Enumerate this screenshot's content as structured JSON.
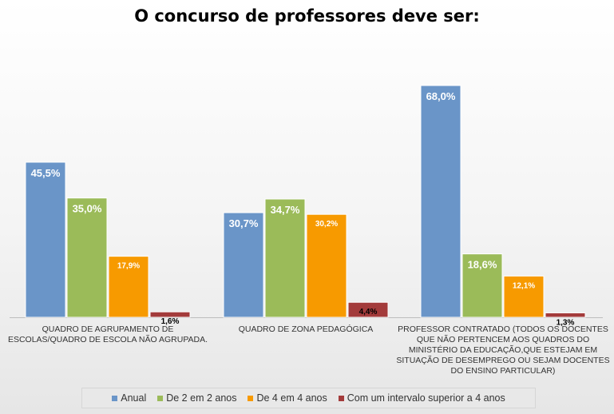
{
  "chart_data": {
    "type": "bar",
    "title": "O concurso de professores deve ser:",
    "categories": [
      [
        "QUADRO DE AGRUPAMENTO DE",
        "ESCOLAS/QUADRO DE ESCOLA NÃO AGRUPADA."
      ],
      [
        "QUADRO DE ZONA PEDAGÓGICA"
      ],
      [
        "PROFESSOR CONTRATADO (TODOS OS DOCENTES",
        "QUE NÃO PERTENCEM AOS QUADROS DO",
        "MINISTÉRIO DA EDUCAÇÃO,QUE ESTEJAM EM",
        "SITUAÇÃO DE DESEMPREGO OU SEJAM DOCENTES",
        "DO ENSINO PARTICULAR)"
      ]
    ],
    "series": [
      {
        "name": "Anual",
        "color": "#6a95c8",
        "values": [
          45.5,
          30.7,
          68.0
        ],
        "labels": [
          "45,5%",
          "30,7%",
          "68,0%"
        ]
      },
      {
        "name": "De 2 em 2 anos",
        "color": "#9bbb59",
        "values": [
          35.0,
          34.7,
          18.6
        ],
        "labels": [
          "35,0%",
          "34,7%",
          "18,6%"
        ]
      },
      {
        "name": "De 4 em 4 anos",
        "color": "#f79a00",
        "values": [
          17.9,
          30.2,
          12.1
        ],
        "labels": [
          "17,9%",
          "30,2%",
          "12,1%"
        ]
      },
      {
        "name": "Com um intervalo superior a 4 anos",
        "color": "#a33b3b",
        "values": [
          1.6,
          4.4,
          1.3
        ],
        "labels": [
          "1,6%",
          "4,4%",
          "1,3%"
        ]
      }
    ],
    "ylim": [
      0,
      72
    ],
    "grid": false,
    "legend_position": "bottom"
  }
}
